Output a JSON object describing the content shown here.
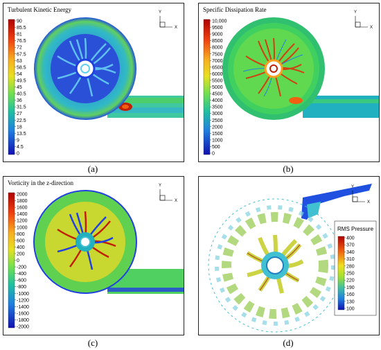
{
  "panels": [
    {
      "id": "a",
      "title": "Turbulent Kinetic Energy",
      "caption": "(a)",
      "legend_ticks": [
        "90",
        "85.5",
        "81",
        "76.5",
        "72",
        "67.5",
        "63",
        "58.5",
        "54",
        "49.5",
        "45",
        "40.5",
        "36",
        "31.5",
        "27",
        "22.5",
        "18",
        "13.5",
        "9",
        "4.5",
        "0"
      ],
      "axis_x": "X",
      "axis_y": "Y"
    },
    {
      "id": "b",
      "title": "Specific Dissipation Rate",
      "caption": "(b)",
      "legend_ticks": [
        "10,000",
        "9500",
        "9000",
        "8500",
        "8000",
        "7500",
        "7000",
        "6500",
        "6000",
        "5500",
        "5000",
        "4500",
        "4000",
        "3500",
        "3000",
        "2500",
        "2000",
        "1500",
        "1000",
        "500",
        "0"
      ],
      "axis_x": "X",
      "axis_y": "Y"
    },
    {
      "id": "c",
      "title": "Vorticity in the z-direction",
      "caption": "(c)",
      "legend_ticks": [
        "2000",
        "1800",
        "1600",
        "1400",
        "1200",
        "1000",
        "800",
        "600",
        "400",
        "200",
        "0",
        "-200",
        "-400",
        "-600",
        "-800",
        "-1000",
        "-1200",
        "-1400",
        "-1600",
        "-1800",
        "-2000"
      ],
      "axis_x": "X",
      "axis_y": "Y"
    },
    {
      "id": "d",
      "title": "RMS Pressure",
      "caption": "(d)",
      "legend_ticks": [
        "400",
        "370",
        "340",
        "310",
        "280",
        "250",
        "220",
        "190",
        "160",
        "130",
        "100"
      ],
      "axis_x": "X",
      "axis_y": "Y"
    }
  ],
  "colors": {
    "scale": [
      "#b00000",
      "#e02000",
      "#f06010",
      "#f8a020",
      "#f0d020",
      "#c8e020",
      "#80e040",
      "#40d060",
      "#20c090",
      "#20b0c0",
      "#2080e0",
      "#2040e0",
      "#1010c0"
    ]
  }
}
